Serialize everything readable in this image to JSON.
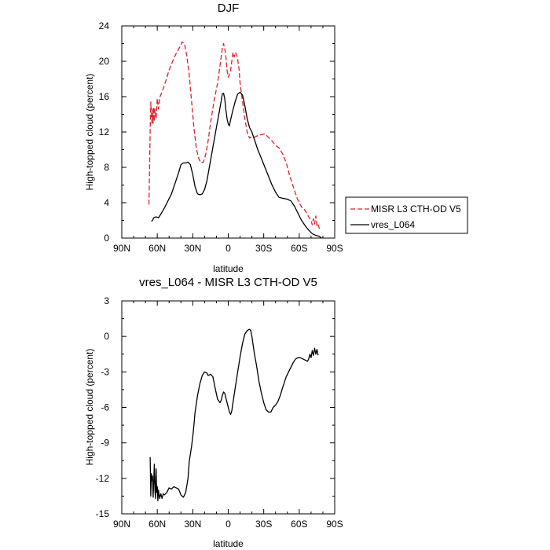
{
  "chart_data": [
    {
      "type": "line",
      "title": "DJF",
      "xlabel": "latitude",
      "ylabel": "High-topped cloud (percent)",
      "xlim": [
        90,
        -90
      ],
      "ylim": [
        0,
        24
      ],
      "xticks": [
        90,
        60,
        30,
        0,
        -30,
        -60,
        -90
      ],
      "xtick_labels": [
        "90N",
        "60N",
        "30N",
        "0",
        "30S",
        "60S",
        "90S"
      ],
      "yticks": [
        0,
        4,
        8,
        12,
        16,
        20,
        24
      ],
      "ytick_labels": [
        "0",
        "4",
        "8",
        "12",
        "16",
        "20",
        "24"
      ],
      "legend_position": "right",
      "series": [
        {
          "name": "MISR L3 CTH-OD V5",
          "color": "#e0202a",
          "style": "dashed",
          "points": [
            [
              67,
              3.8
            ],
            [
              66,
              12
            ],
            [
              65.5,
              15.4
            ],
            [
              65,
              14
            ],
            [
              64.5,
              13
            ],
            [
              64,
              14.6
            ],
            [
              63.5,
              13
            ],
            [
              63,
              14.8
            ],
            [
              62.5,
              13.2
            ],
            [
              62,
              14.6
            ],
            [
              61,
              13.5
            ],
            [
              60,
              15.8
            ],
            [
              59,
              14.6
            ],
            [
              58,
              15.9
            ],
            [
              56,
              16.5
            ],
            [
              53,
              17.7
            ],
            [
              50,
              19
            ],
            [
              47,
              20
            ],
            [
              44,
              20.9
            ],
            [
              41,
              21.6
            ],
            [
              39,
              22.2
            ],
            [
              37,
              22
            ],
            [
              35,
              20.6
            ],
            [
              33,
              18.5
            ],
            [
              31,
              15.5
            ],
            [
              29,
              12.5
            ],
            [
              27,
              10.2
            ],
            [
              25,
              9
            ],
            [
              23,
              8.5
            ],
            [
              21,
              8.6
            ],
            [
              19,
              9.5
            ],
            [
              17,
              11
            ],
            [
              15,
              13
            ],
            [
              12,
              15.5
            ],
            [
              9,
              17.5
            ],
            [
              7,
              19.5
            ],
            [
              5,
              21.5
            ],
            [
              4,
              22
            ],
            [
              3,
              21.5
            ],
            [
              2,
              20.5
            ],
            [
              1,
              19
            ],
            [
              0,
              18.2
            ],
            [
              -1,
              18.5
            ],
            [
              -2,
              19
            ],
            [
              -3,
              20
            ],
            [
              -4,
              21
            ],
            [
              -5,
              20.5
            ],
            [
              -6,
              21
            ],
            [
              -7,
              20.8
            ],
            [
              -8,
              20.2
            ],
            [
              -9,
              19.2
            ],
            [
              -10,
              17.5
            ],
            [
              -12,
              15.5
            ],
            [
              -14,
              13.5
            ],
            [
              -16,
              12
            ],
            [
              -18,
              11.3
            ],
            [
              -20,
              11.5
            ],
            [
              -22,
              11.4
            ],
            [
              -25,
              11.6
            ],
            [
              -28,
              11.7
            ],
            [
              -31,
              11.8
            ],
            [
              -34,
              11.4
            ],
            [
              -37,
              11
            ],
            [
              -40,
              10.5
            ],
            [
              -43,
              10.2
            ],
            [
              -46,
              9.5
            ],
            [
              -49,
              8.5
            ],
            [
              -52,
              7
            ],
            [
              -55,
              5.8
            ],
            [
              -58,
              4.6
            ],
            [
              -60,
              4
            ],
            [
              -62,
              3.5
            ],
            [
              -64,
              3.3
            ],
            [
              -66,
              2.9
            ],
            [
              -68,
              2.4
            ],
            [
              -70,
              2
            ],
            [
              -71,
              1.5
            ],
            [
              -72,
              2.2
            ],
            [
              -73,
              1.6
            ],
            [
              -74,
              2.5
            ],
            [
              -75,
              1.3
            ],
            [
              -76,
              1.5
            ],
            [
              -77,
              1.1
            ],
            [
              -78,
              1.3
            ]
          ]
        },
        {
          "name": "vres_L064",
          "color": "#000000",
          "style": "solid",
          "points": [
            [
              65,
              1.9
            ],
            [
              64,
              2
            ],
            [
              63,
              2.3
            ],
            [
              61,
              2.4
            ],
            [
              59,
              2.3
            ],
            [
              57,
              2.7
            ],
            [
              54,
              3.4
            ],
            [
              51,
              4.2
            ],
            [
              48,
              5
            ],
            [
              45,
              6.2
            ],
            [
              42,
              7.4
            ],
            [
              40,
              8.3
            ],
            [
              38,
              8.5
            ],
            [
              36,
              8.5
            ],
            [
              34,
              8.6
            ],
            [
              32,
              8.3
            ],
            [
              30,
              7.2
            ],
            [
              28,
              5.8
            ],
            [
              26,
              5
            ],
            [
              24,
              4.9
            ],
            [
              22,
              5
            ],
            [
              20,
              5.5
            ],
            [
              18,
              6.5
            ],
            [
              16,
              8
            ],
            [
              14,
              9.5
            ],
            [
              12,
              11
            ],
            [
              10,
              12.5
            ],
            [
              8,
              14
            ],
            [
              6,
              15.5
            ],
            [
              5,
              16.3
            ],
            [
              4,
              16.4
            ],
            [
              3,
              15.8
            ],
            [
              2,
              14.5
            ],
            [
              1,
              13.5
            ],
            [
              0,
              12.9
            ],
            [
              -1,
              12.7
            ],
            [
              -2,
              13.4
            ],
            [
              -4,
              14.5
            ],
            [
              -6,
              15.5
            ],
            [
              -8,
              16.3
            ],
            [
              -10,
              16.5
            ],
            [
              -12,
              16.2
            ],
            [
              -14,
              15
            ],
            [
              -16,
              13.5
            ],
            [
              -18,
              12.5
            ],
            [
              -20,
              12
            ],
            [
              -22,
              11.2
            ],
            [
              -25,
              10
            ],
            [
              -28,
              9
            ],
            [
              -31,
              8
            ],
            [
              -34,
              7
            ],
            [
              -37,
              6
            ],
            [
              -40,
              5.2
            ],
            [
              -43,
              4.6
            ],
            [
              -46,
              4.5
            ],
            [
              -50,
              4.4
            ],
            [
              -53,
              4.2
            ],
            [
              -56,
              3.6
            ],
            [
              -59,
              2.8
            ],
            [
              -62,
              2
            ],
            [
              -65,
              1.4
            ],
            [
              -68,
              0.9
            ],
            [
              -71,
              0.5
            ],
            [
              -74,
              0.3
            ],
            [
              -77,
              0.2
            ],
            [
              -79,
              0
            ]
          ]
        }
      ]
    },
    {
      "type": "line",
      "title": "vres_L064 - MISR L3 CTH-OD V5",
      "xlabel": "latitude",
      "ylabel": "High-topped cloud (percent)",
      "xlim": [
        90,
        -90
      ],
      "ylim": [
        -15,
        3
      ],
      "xticks": [
        90,
        60,
        30,
        0,
        -30,
        -60,
        -90
      ],
      "xtick_labels": [
        "90N",
        "60N",
        "30N",
        "0",
        "30S",
        "60S",
        "90S"
      ],
      "yticks": [
        -15,
        -12,
        -9,
        -6,
        -3,
        0,
        3
      ],
      "ytick_labels": [
        "-15",
        "-12",
        "-9",
        "-6",
        "-3",
        "0",
        "3"
      ],
      "series": [
        {
          "color": "#000000",
          "style": "solid",
          "points": [
            [
              66,
              -10.2
            ],
            [
              65.5,
              -13.5
            ],
            [
              65,
              -11.6
            ],
            [
              64.5,
              -12.2
            ],
            [
              64,
              -11.8
            ],
            [
              63.5,
              -13.6
            ],
            [
              63,
              -12.2
            ],
            [
              62.5,
              -10.8
            ],
            [
              62,
              -13
            ],
            [
              61.5,
              -13.7
            ],
            [
              61,
              -11.2
            ],
            [
              60.5,
              -13.2
            ],
            [
              60,
              -12.7
            ],
            [
              59.5,
              -13.9
            ],
            [
              59,
              -13
            ],
            [
              58,
              -13.7
            ],
            [
              57,
              -13.3
            ],
            [
              56,
              -13.7
            ],
            [
              55,
              -13.3
            ],
            [
              54,
              -13.4
            ],
            [
              52,
              -13.2
            ],
            [
              50,
              -12.8
            ],
            [
              48,
              -12.9
            ],
            [
              46,
              -12.7
            ],
            [
              44,
              -12.8
            ],
            [
              42,
              -12.9
            ],
            [
              40,
              -13.4
            ],
            [
              38,
              -13.6
            ],
            [
              36,
              -13.2
            ],
            [
              34,
              -12
            ],
            [
              33,
              -10.6
            ],
            [
              31,
              -9.3
            ],
            [
              30,
              -8.5
            ],
            [
              29,
              -7.5
            ],
            [
              28,
              -6.4
            ],
            [
              26,
              -5
            ],
            [
              24,
              -4
            ],
            [
              22,
              -3.3
            ],
            [
              20,
              -3
            ],
            [
              18,
              -3.1
            ],
            [
              17,
              -3.3
            ],
            [
              15,
              -3.2
            ],
            [
              13,
              -3.4
            ],
            [
              11,
              -4.4
            ],
            [
              9,
              -5.3
            ],
            [
              7,
              -5.6
            ],
            [
              6,
              -5.4
            ],
            [
              5,
              -5
            ],
            [
              4,
              -4.7
            ],
            [
              3,
              -4.8
            ],
            [
              2,
              -5.2
            ],
            [
              1,
              -5.6
            ],
            [
              0,
              -6
            ],
            [
              -1,
              -6.4
            ],
            [
              -2,
              -6.6
            ],
            [
              -3,
              -6.3
            ],
            [
              -4,
              -5.6
            ],
            [
              -6,
              -4.3
            ],
            [
              -8,
              -3
            ],
            [
              -10,
              -1.7
            ],
            [
              -12,
              -0.6
            ],
            [
              -14,
              0.2
            ],
            [
              -16,
              0.5
            ],
            [
              -18,
              0.6
            ],
            [
              -19,
              0.5
            ],
            [
              -20,
              0
            ],
            [
              -21,
              -0.7
            ],
            [
              -22,
              -1.4
            ],
            [
              -24,
              -2.5
            ],
            [
              -26,
              -3.8
            ],
            [
              -28,
              -4.8
            ],
            [
              -30,
              -5.6
            ],
            [
              -32,
              -6.2
            ],
            [
              -34,
              -6.4
            ],
            [
              -36,
              -6.4
            ],
            [
              -38,
              -6
            ],
            [
              -40,
              -5.8
            ],
            [
              -42,
              -5.5
            ],
            [
              -44,
              -5
            ],
            [
              -46,
              -4.3
            ],
            [
              -49,
              -3.4
            ],
            [
              -52,
              -2.8
            ],
            [
              -55,
              -2.2
            ],
            [
              -57,
              -1.9
            ],
            [
              -59,
              -1.8
            ],
            [
              -61,
              -1.8
            ],
            [
              -63,
              -1.9
            ],
            [
              -65,
              -2
            ],
            [
              -67,
              -2.1
            ],
            [
              -68,
              -1.9
            ],
            [
              -69,
              -1.5
            ],
            [
              -70,
              -1.8
            ],
            [
              -71,
              -1.2
            ],
            [
              -72,
              -1.6
            ],
            [
              -73,
              -1
            ],
            [
              -74,
              -1.5
            ],
            [
              -75,
              -1.1
            ],
            [
              -76,
              -1.6
            ]
          ]
        }
      ]
    }
  ]
}
